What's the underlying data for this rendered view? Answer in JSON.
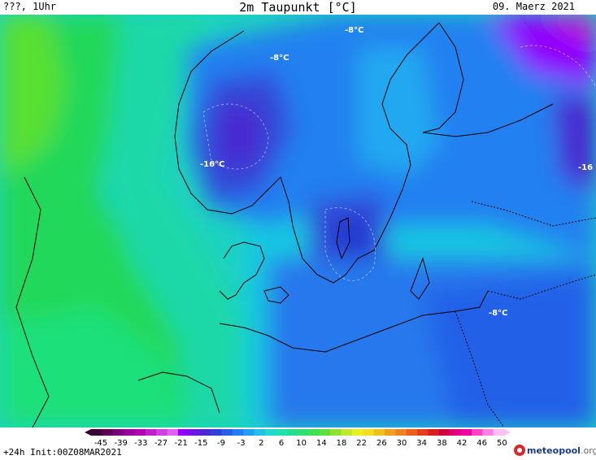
{
  "header": {
    "left": "???, 1Uhr",
    "title": "2m Taupunkt [°C]",
    "date": "09. Maerz 2021"
  },
  "footer": {
    "run_info": "+24h  Init:00Z08MAR2021",
    "logo_main": "meteopool",
    "logo_tld": ".org"
  },
  "map_labels": [
    {
      "text": "-8°C"
    },
    {
      "text": "-8°C"
    },
    {
      "text": "-16°C"
    },
    {
      "text": "-8°C"
    },
    {
      "text": "-16"
    }
  ],
  "legend": {
    "ticks": [
      "-45",
      "-39",
      "-33",
      "-27",
      "-21",
      "-15",
      "-9",
      "-3",
      "2",
      "6",
      "10",
      "14",
      "18",
      "22",
      "26",
      "30",
      "34",
      "38",
      "42",
      "46",
      "50"
    ],
    "colors": [
      "#3a0033",
      "#5c0055",
      "#7a0078",
      "#990099",
      "#b000b0",
      "#c020c8",
      "#d040e0",
      "#e060f0",
      "#8f00ff",
      "#6a18e0",
      "#4a28d0",
      "#3040d8",
      "#2860e8",
      "#2080f0",
      "#20a0f0",
      "#20c0e8",
      "#20d8d0",
      "#20e0b0",
      "#20e090",
      "#30e070",
      "#40e050",
      "#60e040",
      "#90e030",
      "#c0e830",
      "#e8f020",
      "#f0e020",
      "#f0c020",
      "#f0a020",
      "#f08020",
      "#e86020",
      "#e04020",
      "#d82020",
      "#d00040",
      "#e00080",
      "#f000a0",
      "#ff40c0",
      "#ff80e0",
      "#ffc0f0"
    ]
  }
}
